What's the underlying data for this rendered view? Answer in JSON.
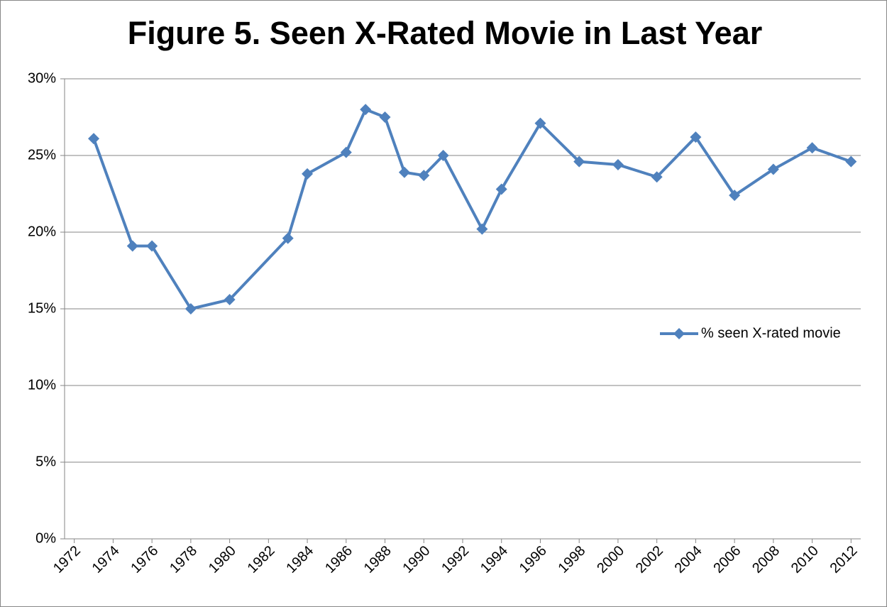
{
  "chart_data": {
    "type": "line",
    "title": "Figure 5. Seen X-Rated Movie in Last Year",
    "x": [
      1973,
      1975,
      1976,
      1978,
      1980,
      1983,
      1984,
      1986,
      1987,
      1988,
      1989,
      1990,
      1991,
      1993,
      1994,
      1996,
      1998,
      2000,
      2002,
      2004,
      2006,
      2008,
      2010,
      2012
    ],
    "series": [
      {
        "name": "% seen X-rated movie",
        "color": "#4f81bd",
        "values": [
          26.1,
          19.1,
          19.1,
          15.0,
          15.6,
          19.6,
          23.8,
          25.2,
          28.0,
          27.5,
          23.9,
          23.7,
          25.0,
          20.2,
          22.8,
          27.1,
          24.6,
          24.4,
          23.6,
          26.2,
          22.4,
          24.1,
          25.5,
          24.6
        ]
      }
    ],
    "xlim": [
      1971.5,
      2012.5
    ],
    "xticks": [
      1972,
      1974,
      1976,
      1978,
      1980,
      1982,
      1984,
      1986,
      1988,
      1990,
      1992,
      1994,
      1996,
      1998,
      2000,
      2002,
      2004,
      2006,
      2008,
      2010,
      2012
    ],
    "ylim": [
      0,
      30
    ],
    "yticks": [
      {
        "value": 0,
        "label": "0%"
      },
      {
        "value": 5,
        "label": "5%"
      },
      {
        "value": 10,
        "label": "10%"
      },
      {
        "value": 15,
        "label": "15%"
      },
      {
        "value": 20,
        "label": "20%"
      },
      {
        "value": 25,
        "label": "25%"
      },
      {
        "value": 30,
        "label": "30%"
      }
    ],
    "grid": true,
    "legend": "right"
  }
}
